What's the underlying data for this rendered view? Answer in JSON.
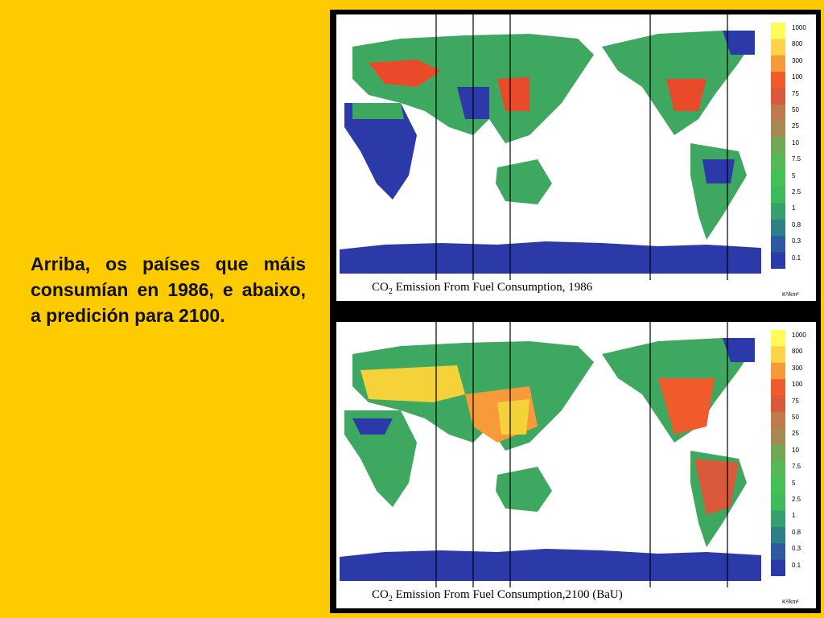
{
  "caption": "Arriba, os países que máis consumían en 1986, e abaixo, a predición para 2100.",
  "colors": {
    "background": "#fecb00",
    "frame": "#000000",
    "ocean": "#ffffff",
    "low_emission": "#2b3aa8",
    "mid_emission": "#3fa860",
    "high_emission": "#e94b2a",
    "very_high_emission": "#f5d23a"
  },
  "maps": [
    {
      "title_prefix": "CO",
      "title_sub": "2",
      "title_rest": " Emission From Fuel Consumption, 1986",
      "unit": "K²/km²"
    },
    {
      "title_prefix": "CO",
      "title_sub": "2",
      "title_rest": " Emission From Fuel Consumption,2100   (BaU)",
      "unit": "K²/km²"
    }
  ],
  "legend": {
    "labels": [
      "1000",
      "800",
      "300",
      "100",
      "75",
      "50",
      "25",
      "10",
      "7.5",
      "5",
      "2.5",
      "1",
      "0.8",
      "0.3",
      "0.1"
    ],
    "colors": [
      "#fffb5a",
      "#fbd44a",
      "#f79a3a",
      "#ef5b2c",
      "#d9593a",
      "#c07a4c",
      "#a68a55",
      "#6fa956",
      "#55b95a",
      "#43c056",
      "#3dbb5c",
      "#37a06e",
      "#2f7f87",
      "#2e5aa0",
      "#2b3aa8"
    ]
  }
}
